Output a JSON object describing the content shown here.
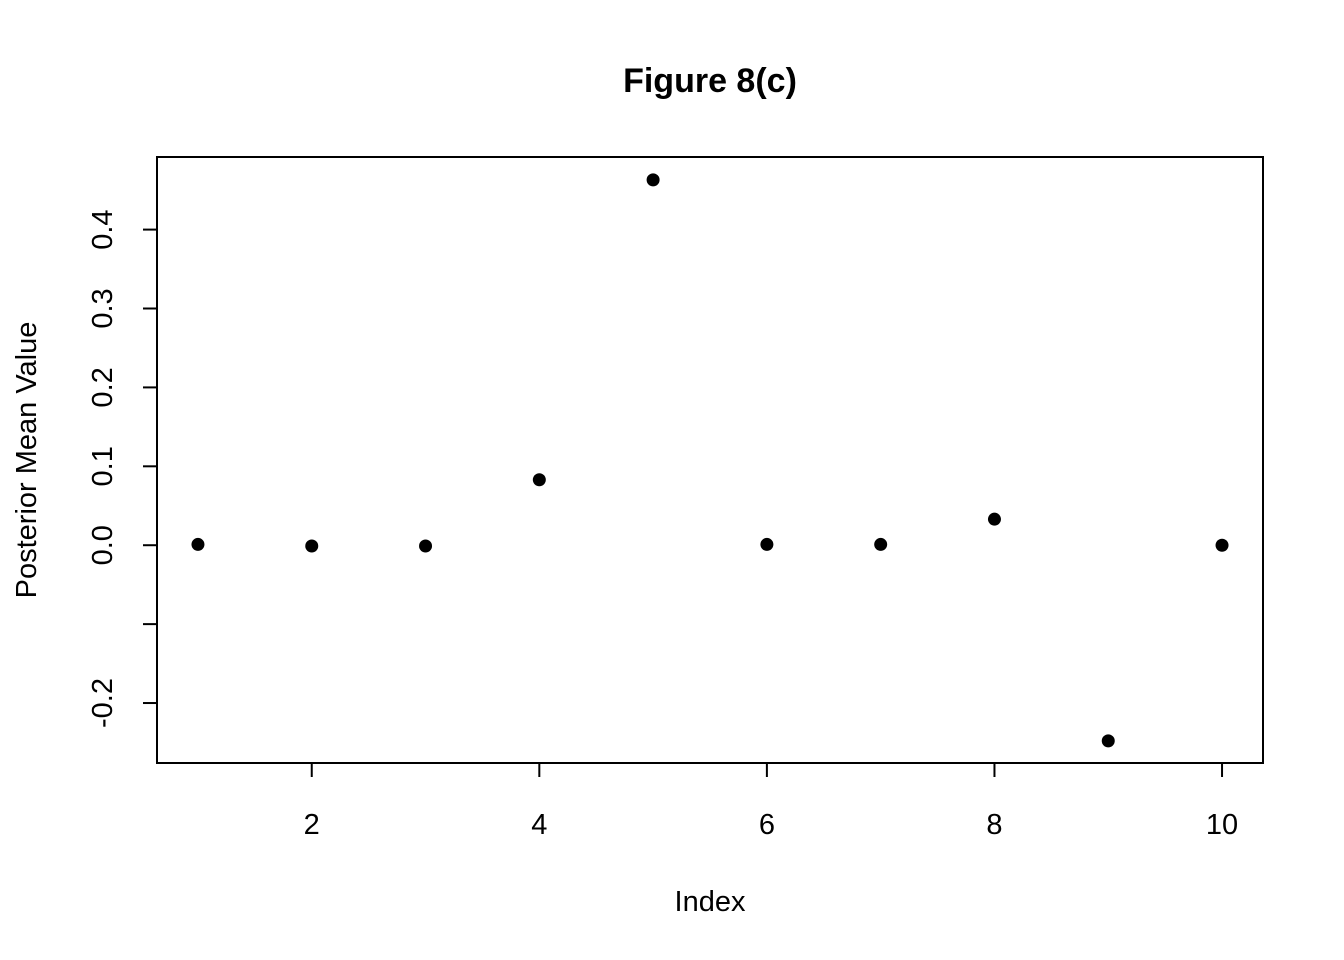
{
  "chart_data": {
    "type": "scatter",
    "title": "Figure 8(c)",
    "xlabel": "Index",
    "ylabel": "Posterior Mean Value",
    "x": [
      1,
      2,
      3,
      4,
      5,
      6,
      7,
      8,
      9,
      10
    ],
    "y": [
      0.001,
      -0.001,
      -0.001,
      0.083,
      0.463,
      0.001,
      0.001,
      0.033,
      -0.248,
      0.0
    ],
    "xlim": [
      0.64,
      10.36
    ],
    "ylim": [
      -0.276,
      0.492
    ],
    "x_ticks": [
      2,
      4,
      6,
      8,
      10
    ],
    "x_tick_labels": [
      "2",
      "4",
      "6",
      "8",
      "10"
    ],
    "y_ticks": [
      -0.2,
      -0.1,
      0.0,
      0.1,
      0.2,
      0.3,
      0.4
    ],
    "y_tick_labels": [
      "-0.2",
      "",
      "0.0",
      "0.1",
      "0.2",
      "0.3",
      "0.4"
    ],
    "grid": false,
    "legend": "none",
    "point_color": "#000000"
  }
}
